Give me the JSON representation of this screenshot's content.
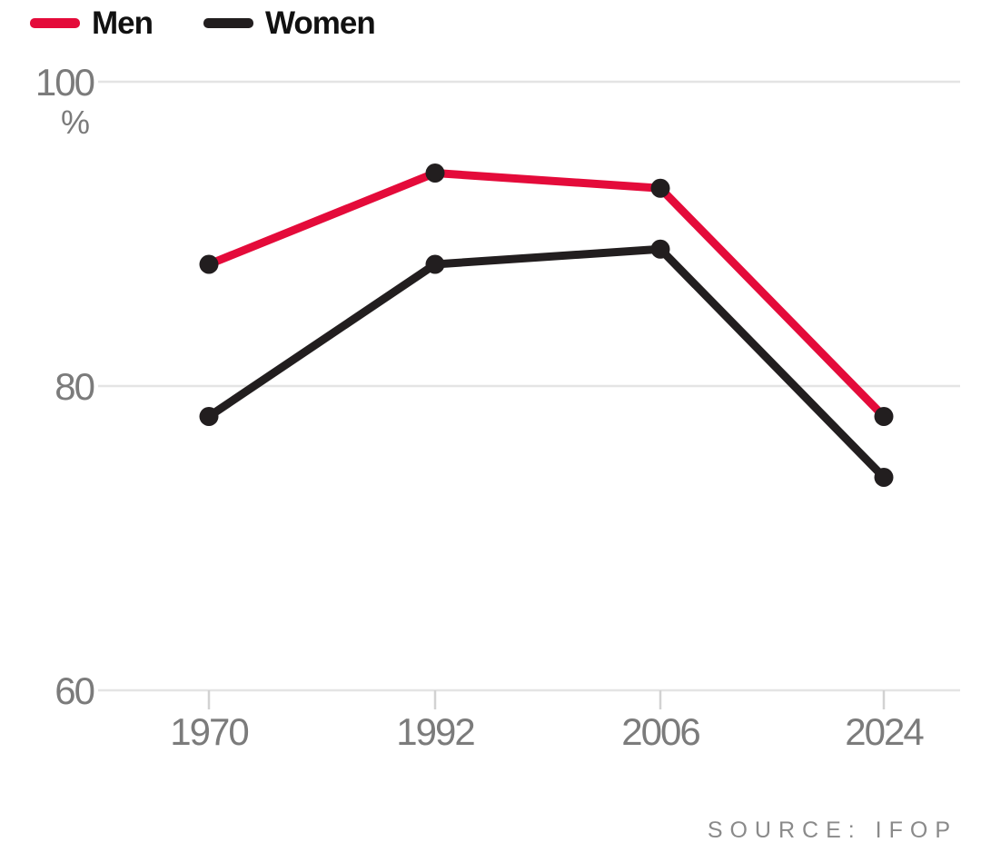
{
  "chart_data": {
    "type": "line",
    "categories": [
      "1970",
      "1992",
      "2006",
      "2024"
    ],
    "series": [
      {
        "name": "Men",
        "values": [
          88,
          94,
          93,
          78
        ],
        "color": "#e40b3a"
      },
      {
        "name": "Women",
        "values": [
          78,
          88,
          89,
          74
        ],
        "color": "#221e1f"
      }
    ],
    "title": "",
    "xlabel": "",
    "ylabel": "%",
    "yticks": [
      100,
      80,
      60
    ],
    "ylim": [
      57,
      102
    ],
    "grid": "horizontal",
    "legend_position": "top-left",
    "marker_color": "#221e1f",
    "grid_color": "#e4e4e4",
    "tick_color": "#d2d2d2",
    "axis_text_color": "#7b7b7b",
    "source": "SOURCE: IFOP"
  }
}
